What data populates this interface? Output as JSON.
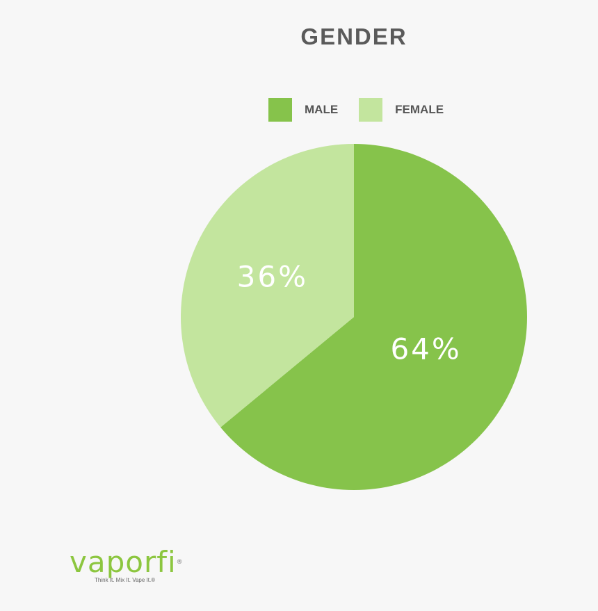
{
  "chart_data": {
    "type": "pie",
    "title": "GENDER",
    "legend_position": "top",
    "slices": [
      {
        "label": "MALE",
        "value": 64,
        "display": "64%",
        "color": "#86c34b"
      },
      {
        "label": "FEMALE",
        "value": 36,
        "display": "36%",
        "color": "#c3e59e"
      }
    ]
  },
  "brand": {
    "logo_text": "vaporfi",
    "registered_mark": "®",
    "tagline": "Think It. Mix It. Vape It.®",
    "color": "#8cc63f"
  }
}
